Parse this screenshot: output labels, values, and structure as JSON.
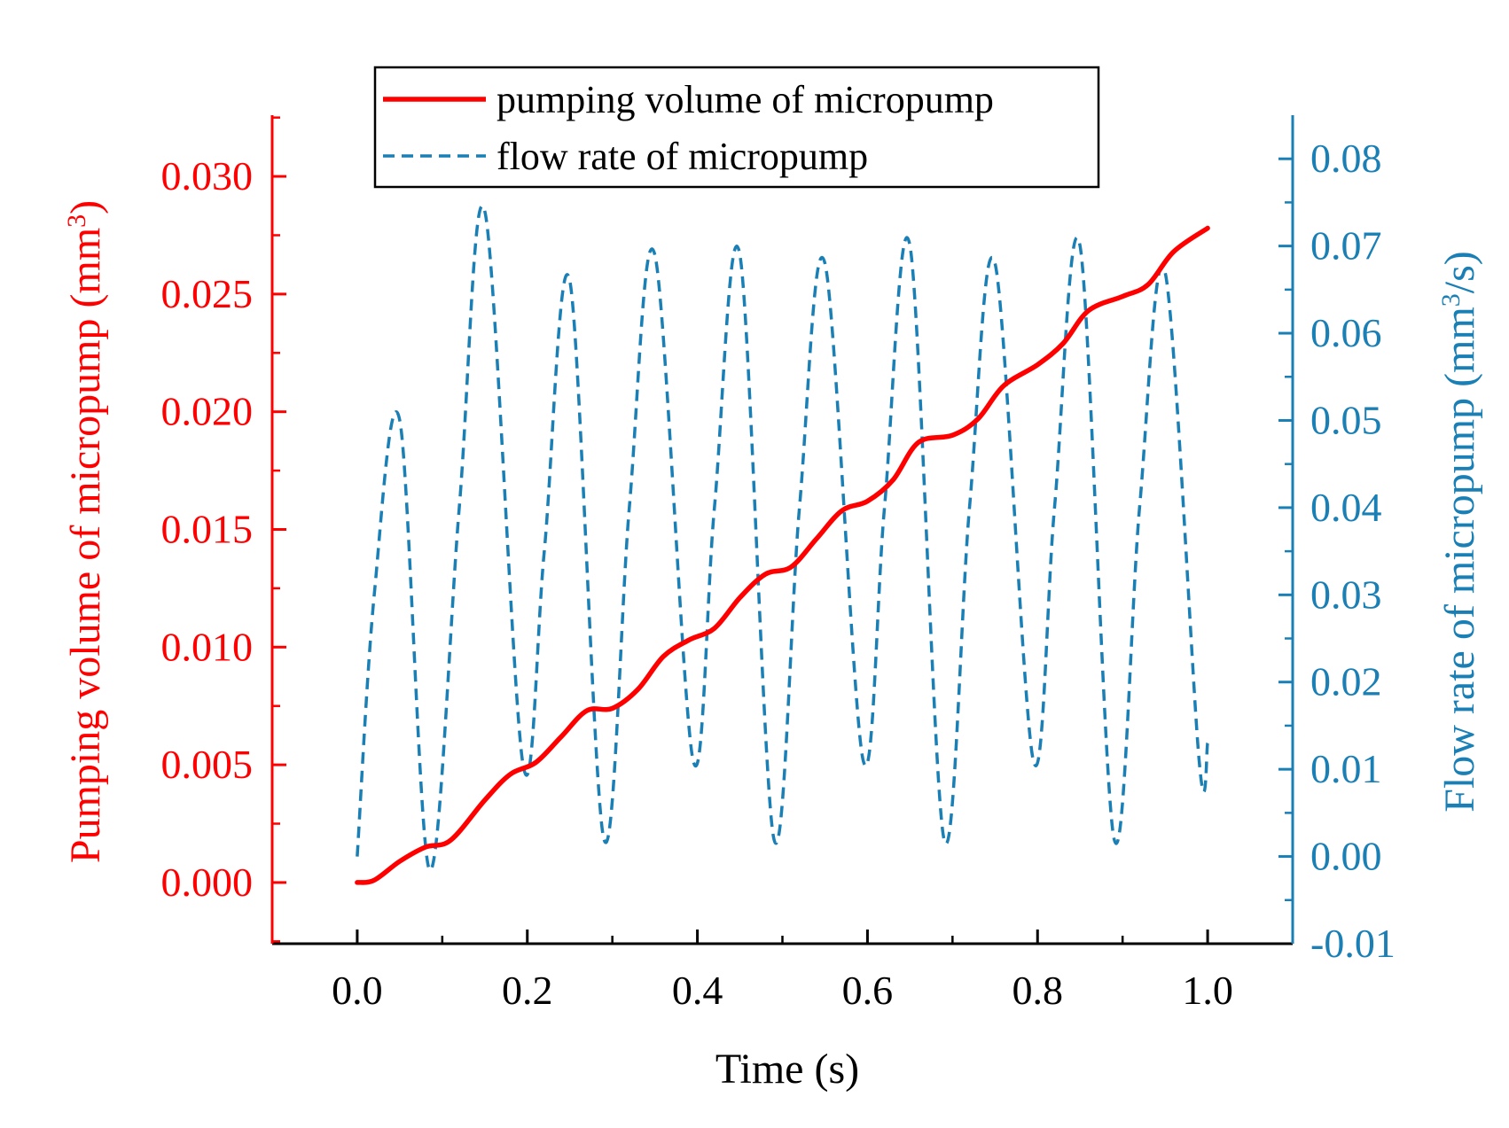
{
  "chart_data": {
    "type": "line",
    "title": "",
    "xlabel": "Time (s)",
    "ylabel_left": {
      "prefix": "Pumping volume of micropump (mm",
      "sup": "3",
      "suffix": ")"
    },
    "ylabel_right": {
      "prefix": "Flow rate of micropump (mm",
      "sup": "3",
      "suffix": "/s)"
    },
    "xlim": [
      -0.1,
      1.1
    ],
    "ylim_left": [
      -0.0026,
      0.0326
    ],
    "ylim_right": [
      -0.01,
      0.085
    ],
    "x_ticks": [
      "0.0",
      "0.2",
      "0.4",
      "0.6",
      "0.8",
      "1.0"
    ],
    "y_left_ticks": [
      "0.000",
      "0.005",
      "0.010",
      "0.015",
      "0.020",
      "0.025",
      "0.030"
    ],
    "y_right_ticks": [
      "-0.01",
      "0.00",
      "0.01",
      "0.02",
      "0.03",
      "0.04",
      "0.05",
      "0.06",
      "0.07",
      "0.08"
    ],
    "legend_position": "top-center",
    "colors": {
      "left_axis": "#ff0000",
      "right_axis": "#1a7fb5",
      "axis": "#000000"
    },
    "series": [
      {
        "name": "pumping volume of micropump",
        "axis": "left",
        "style": "solid",
        "color": "#ff0000",
        "x": [
          0.0,
          0.02,
          0.05,
          0.08,
          0.11,
          0.15,
          0.18,
          0.21,
          0.24,
          0.27,
          0.3,
          0.33,
          0.36,
          0.39,
          0.42,
          0.45,
          0.48,
          0.51,
          0.54,
          0.57,
          0.6,
          0.63,
          0.66,
          0.7,
          0.73,
          0.76,
          0.8,
          0.83,
          0.86,
          0.9,
          0.93,
          0.96,
          1.0
        ],
        "values": [
          0.0,
          0.0001,
          0.0009,
          0.0015,
          0.0018,
          0.0035,
          0.0046,
          0.0051,
          0.0062,
          0.0073,
          0.0074,
          0.0082,
          0.0096,
          0.0103,
          0.0108,
          0.0121,
          0.0131,
          0.0134,
          0.0146,
          0.0158,
          0.0162,
          0.0171,
          0.0187,
          0.019,
          0.0197,
          0.0211,
          0.022,
          0.0229,
          0.0243,
          0.0249,
          0.0254,
          0.0268,
          0.0278
        ]
      },
      {
        "name": "flow rate of micropump",
        "axis": "right",
        "style": "dashed",
        "color": "#1a7fb5",
        "x": [
          0.0,
          0.02,
          0.05,
          0.085,
          0.12,
          0.15,
          0.195,
          0.22,
          0.25,
          0.29,
          0.32,
          0.35,
          0.395,
          0.42,
          0.45,
          0.49,
          0.52,
          0.55,
          0.595,
          0.62,
          0.65,
          0.69,
          0.72,
          0.75,
          0.795,
          0.82,
          0.85,
          0.89,
          0.92,
          0.95,
          0.99,
          1.0
        ],
        "values": [
          0.0,
          0.03,
          0.05,
          -0.0015,
          0.04,
          0.074,
          0.0105,
          0.035,
          0.066,
          0.002,
          0.04,
          0.069,
          0.011,
          0.04,
          0.069,
          0.002,
          0.04,
          0.068,
          0.011,
          0.04,
          0.07,
          0.002,
          0.04,
          0.068,
          0.011,
          0.04,
          0.07,
          0.002,
          0.04,
          0.067,
          0.011,
          0.013
        ]
      }
    ]
  }
}
